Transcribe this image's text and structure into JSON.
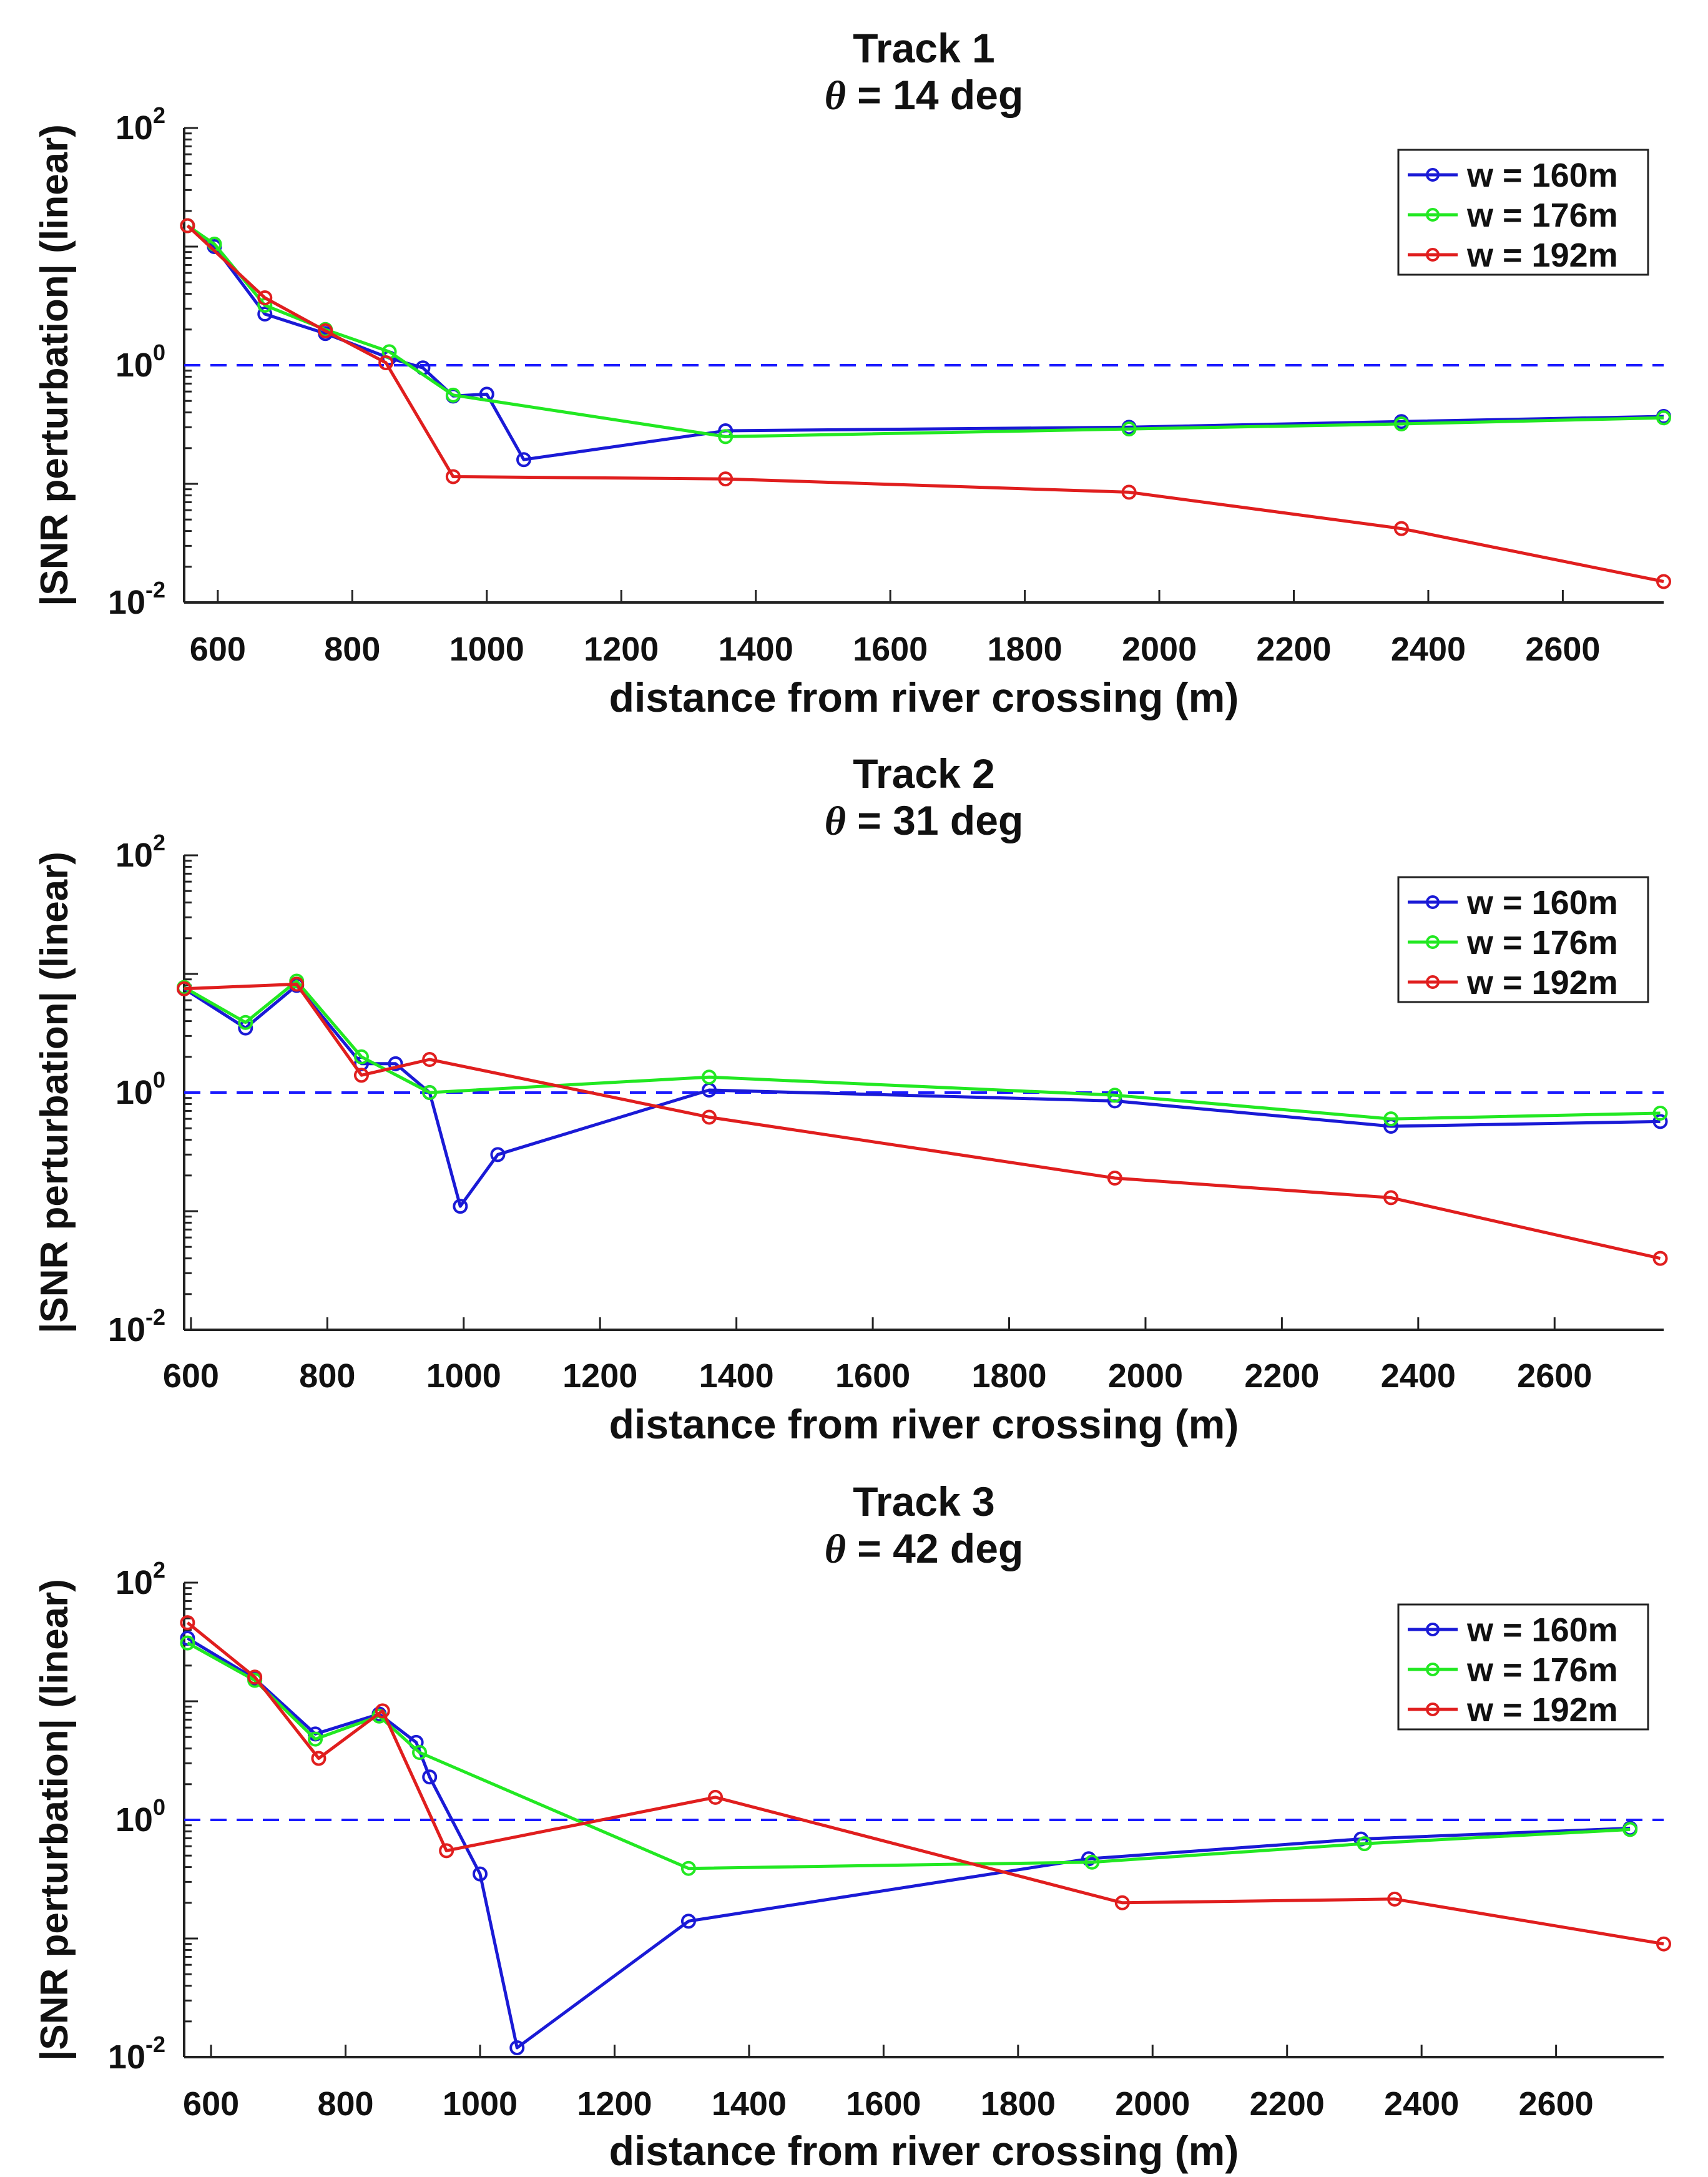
{
  "figure": {
    "xlabel": "distance from river crossing (m)",
    "ylabel": "|SNR perturbation| (linear)"
  },
  "colors": {
    "w160": "#1a1ad6",
    "w176": "#22e822",
    "w192": "#e01e1e",
    "reference": "#1a1aff",
    "axis": "#222222"
  },
  "chart_data": [
    {
      "type": "line",
      "title": "Track 1",
      "subtitle_symbol": "θ",
      "subtitle_rest": " = 14 deg",
      "xlabel": "distance from river crossing (m)",
      "ylabel": "|SNR perturbation| (linear)",
      "yscale": "log",
      "xlim": [
        550,
        2750
      ],
      "ylim": [
        0.01,
        100
      ],
      "xticks": [
        600,
        800,
        1000,
        1200,
        1400,
        1600,
        1800,
        2000,
        2200,
        2400,
        2600
      ],
      "yticks": [
        {
          "base": "10",
          "exp": "2",
          "value": 100
        },
        {
          "base": "10",
          "exp": "0",
          "value": 1
        },
        {
          "base": "10",
          "exp": "-2",
          "value": 0.01
        }
      ],
      "reference_line": 1,
      "legend": [
        "w = 160m",
        "w = 176m",
        "w = 192m"
      ],
      "series": [
        {
          "name": "w = 160m",
          "x": [
            555,
            595,
            670,
            760,
            855,
            905,
            950,
            1000,
            1055,
            1355,
            1955,
            2360,
            2750
          ],
          "y": [
            15,
            10,
            2.7,
            1.85,
            1.15,
            0.95,
            0.55,
            0.57,
            0.16,
            0.28,
            0.3,
            0.335,
            0.37
          ]
        },
        {
          "name": "w = 176m",
          "x": [
            555,
            595,
            670,
            760,
            855,
            950,
            1355,
            1955,
            2360,
            2750
          ],
          "y": [
            15,
            10.5,
            3.2,
            2.0,
            1.3,
            0.56,
            0.25,
            0.29,
            0.32,
            0.36
          ]
        },
        {
          "name": "w = 192m",
          "x": [
            555,
            670,
            760,
            850,
            950,
            1355,
            1955,
            2360,
            2750
          ],
          "y": [
            15,
            3.7,
            1.95,
            1.05,
            0.115,
            0.11,
            0.085,
            0.042,
            0.015
          ]
        }
      ]
    },
    {
      "type": "line",
      "title": "Track 2",
      "subtitle_symbol": "θ",
      "subtitle_rest": " = 31 deg",
      "xlabel": "distance from river crossing (m)",
      "ylabel": "|SNR perturbation| (linear)",
      "yscale": "log",
      "xlim": [
        590,
        2760
      ],
      "ylim": [
        0.01,
        100
      ],
      "xticks": [
        600,
        800,
        1000,
        1200,
        1400,
        1600,
        1800,
        2000,
        2200,
        2400,
        2600
      ],
      "yticks": [
        {
          "base": "10",
          "exp": "2",
          "value": 100
        },
        {
          "base": "10",
          "exp": "0",
          "value": 1
        },
        {
          "base": "10",
          "exp": "-2",
          "value": 0.01
        }
      ],
      "reference_line": 1,
      "legend": [
        "w = 160m",
        "w = 176m",
        "w = 192m"
      ],
      "series": [
        {
          "name": "w = 160m",
          "x": [
            590,
            680,
            755,
            850,
            900,
            950,
            995,
            1050,
            1360,
            1955,
            2360,
            2755
          ],
          "y": [
            7.5,
            3.5,
            8.0,
            1.75,
            1.75,
            1.0,
            0.11,
            0.3,
            1.05,
            0.85,
            0.52,
            0.57
          ]
        },
        {
          "name": "w = 176m",
          "x": [
            590,
            680,
            755,
            850,
            950,
            1360,
            1955,
            2360,
            2755
          ],
          "y": [
            7.7,
            3.9,
            8.7,
            2.0,
            1.0,
            1.35,
            0.95,
            0.6,
            0.67
          ]
        },
        {
          "name": "w = 192m",
          "x": [
            590,
            755,
            850,
            950,
            1360,
            1955,
            2360,
            2755
          ],
          "y": [
            7.5,
            8.2,
            1.4,
            1.9,
            0.62,
            0.19,
            0.13,
            0.04
          ]
        }
      ]
    },
    {
      "type": "line",
      "title": "Track 3",
      "subtitle_symbol": "θ",
      "subtitle_rest": " = 42 deg",
      "xlabel": "distance from river crossing (m)",
      "ylabel": "|SNR perturbation| (linear)",
      "yscale": "log",
      "xlim": [
        560,
        2760
      ],
      "ylim": [
        0.01,
        100
      ],
      "xticks": [
        600,
        800,
        1000,
        1200,
        1400,
        1600,
        1800,
        2000,
        2200,
        2400,
        2600
      ],
      "yticks": [
        {
          "base": "10",
          "exp": "2",
          "value": 100
        },
        {
          "base": "10",
          "exp": "0",
          "value": 1
        },
        {
          "base": "10",
          "exp": "-2",
          "value": 0.01
        }
      ],
      "reference_line": 1,
      "legend": [
        "w = 160m",
        "w = 176m",
        "w = 192m"
      ],
      "series": [
        {
          "name": "w = 160m",
          "x": [
            565,
            665,
            755,
            850,
            905,
            925,
            1000,
            1055,
            1310,
            1905,
            2310,
            2710
          ],
          "y": [
            34,
            15.5,
            5.3,
            7.8,
            4.5,
            2.3,
            0.35,
            0.012,
            0.14,
            0.47,
            0.69,
            0.85
          ]
        },
        {
          "name": "w = 176m",
          "x": [
            565,
            665,
            755,
            850,
            910,
            1310,
            1910,
            2315,
            2710
          ],
          "y": [
            31,
            15,
            4.8,
            7.5,
            3.7,
            0.39,
            0.44,
            0.63,
            0.83
          ]
        },
        {
          "name": "w = 192m",
          "x": [
            565,
            665,
            760,
            855,
            950,
            1350,
            1955,
            2360,
            2760
          ],
          "y": [
            46,
            16,
            3.3,
            8.3,
            0.55,
            1.55,
            0.2,
            0.215,
            0.09
          ]
        }
      ]
    }
  ]
}
